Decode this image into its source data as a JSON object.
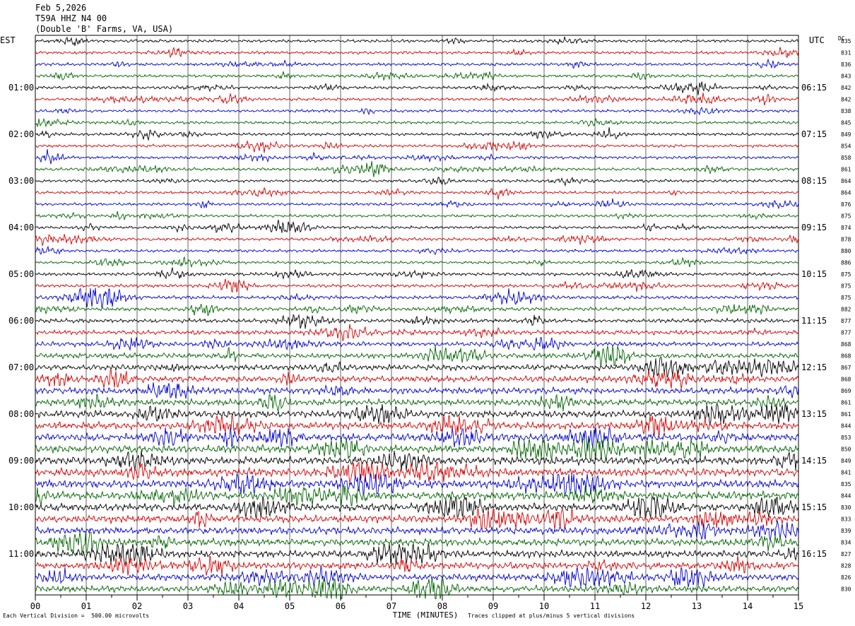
{
  "header": {
    "date": "Feb 5,2026",
    "station": "T59A HHZ N4 00",
    "location": "(Double 'B' Farms, VA, USA)"
  },
  "timezones": {
    "left": "EST",
    "right": "UTC",
    "dc": "DC"
  },
  "footer": {
    "scale": "Each Vertical Division =  500.00 microvolts",
    "clip": "Traces clipped at plus/minus 5 vertical divisions"
  },
  "trace_colors": [
    "#000000",
    "#d40000",
    "#0000cc",
    "#006400"
  ],
  "chart_data": {
    "type": "line",
    "title": "",
    "xlabel": "TIME (MINUTES)",
    "ylabel": "",
    "xlim": [
      0,
      15
    ],
    "x_ticks": [
      "00",
      "01",
      "02",
      "03",
      "04",
      "05",
      "06",
      "07",
      "08",
      "09",
      "10",
      "11",
      "12",
      "13",
      "14",
      "15"
    ],
    "grid": true,
    "rows_per_hour": 4,
    "left_hour_labels": [
      {
        "row": 4,
        "label": "01:00"
      },
      {
        "row": 8,
        "label": "02:00"
      },
      {
        "row": 12,
        "label": "03:00"
      },
      {
        "row": 16,
        "label": "04:00"
      },
      {
        "row": 20,
        "label": "05:00"
      },
      {
        "row": 24,
        "label": "06:00"
      },
      {
        "row": 28,
        "label": "07:00"
      },
      {
        "row": 32,
        "label": "08:00"
      },
      {
        "row": 36,
        "label": "09:00"
      },
      {
        "row": 40,
        "label": "10:00"
      },
      {
        "row": 44,
        "label": "11:00"
      }
    ],
    "right_hour_labels": [
      {
        "row": 4,
        "label": "06:15"
      },
      {
        "row": 8,
        "label": "07:15"
      },
      {
        "row": 12,
        "label": "08:15"
      },
      {
        "row": 16,
        "label": "09:15"
      },
      {
        "row": 20,
        "label": "10:15"
      },
      {
        "row": 24,
        "label": "11:15"
      },
      {
        "row": 28,
        "label": "12:15"
      },
      {
        "row": 32,
        "label": "13:15"
      },
      {
        "row": 36,
        "label": "14:15"
      },
      {
        "row": 40,
        "label": "15:15"
      },
      {
        "row": 44,
        "label": "16:15"
      }
    ],
    "dc_offsets": [
      "835",
      "831",
      "836",
      "843",
      "842",
      "842",
      "838",
      "845",
      "849",
      "854",
      "858",
      "861",
      "864",
      "864",
      "876",
      "875",
      "874",
      "878",
      "880",
      "886",
      "875",
      "875",
      "875",
      "882",
      "877",
      "877",
      "868",
      "868",
      "867",
      "868",
      "869",
      "861",
      "861",
      "844",
      "853",
      "850",
      "849",
      "841",
      "835",
      "844",
      "830",
      "833",
      "839",
      "834",
      "827",
      "828",
      "826",
      "830"
    ],
    "row_amplitude": [
      1,
      1,
      1,
      1,
      1,
      1,
      1,
      1,
      1,
      1,
      1,
      1,
      1,
      1,
      1,
      1,
      1,
      1,
      1,
      1,
      1.1,
      1.1,
      1.2,
      1.3,
      1.4,
      1.5,
      1.6,
      1.8,
      2.0,
      2.1,
      2.2,
      2.3,
      2.4,
      2.5,
      2.6,
      2.7,
      2.7,
      2.8,
      2.8,
      2.7,
      2.6,
      2.6,
      2.5,
      2.5,
      2.4,
      2.4,
      2.3,
      2.2
    ]
  }
}
